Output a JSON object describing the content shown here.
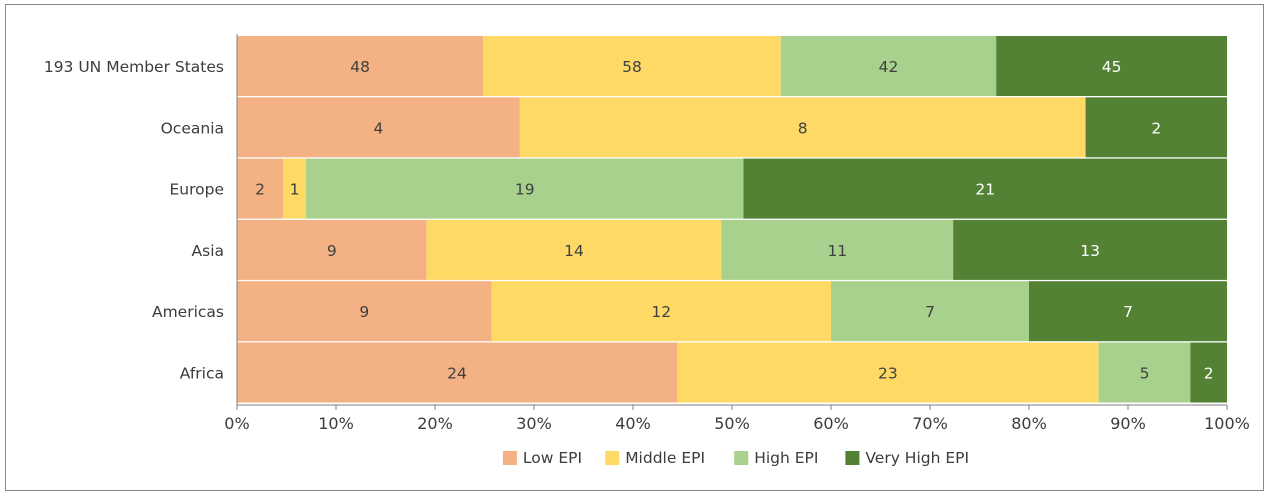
{
  "chart_data": {
    "type": "bar",
    "orientation": "horizontal",
    "stacking": "percent",
    "categories": [
      "193 UN Member States",
      "Oceania",
      "Europe",
      "Asia",
      "Americas",
      "Africa"
    ],
    "series": [
      {
        "name": "Low EPI",
        "color": "#f4b183",
        "label_color": "#404040",
        "values": [
          48,
          4,
          2,
          9,
          9,
          24
        ]
      },
      {
        "name": "Middle EPI",
        "color": "#ffd966",
        "label_color": "#404040",
        "values": [
          58,
          8,
          1,
          14,
          12,
          23
        ]
      },
      {
        "name": "High EPI",
        "color": "#a9d18e",
        "label_color": "#404040",
        "values": [
          42,
          0,
          19,
          11,
          7,
          5
        ]
      },
      {
        "name": "Very High EPI",
        "color": "#548235",
        "label_color": "#ffffff",
        "values": [
          45,
          2,
          21,
          13,
          7,
          2
        ]
      }
    ],
    "xlim": [
      0,
      100
    ],
    "x_ticks": [
      "0%",
      "10%",
      "20%",
      "30%",
      "40%",
      "50%",
      "60%",
      "70%",
      "80%",
      "90%",
      "100%"
    ],
    "legend_position": "bottom",
    "grid": false
  }
}
